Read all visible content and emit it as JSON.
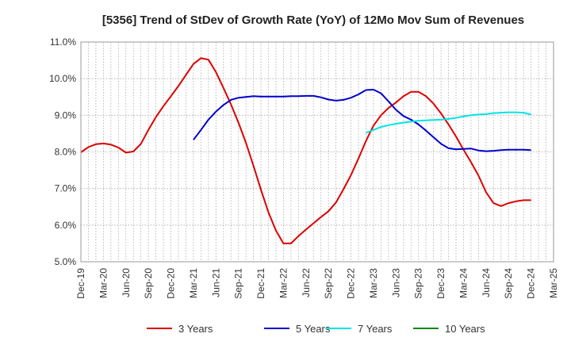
{
  "chart_data": {
    "type": "line",
    "title": "[5356]  Trend of StDev of Growth Rate (YoY) of 12Mo Mov Sum of Revenues",
    "xlabel": "",
    "ylabel": "",
    "ylim": [
      5.0,
      11.0
    ],
    "yticks": [
      "5.0%",
      "6.0%",
      "7.0%",
      "8.0%",
      "9.0%",
      "10.0%",
      "11.0%"
    ],
    "xticks": [
      "Dec-19",
      "Mar-20",
      "Jun-20",
      "Sep-20",
      "Dec-20",
      "Mar-21",
      "Jun-21",
      "Sep-21",
      "Dec-21",
      "Mar-22",
      "Jun-22",
      "Sep-22",
      "Dec-22",
      "Mar-23",
      "Jun-23",
      "Sep-23",
      "Dec-23",
      "Mar-24",
      "Jun-24",
      "Sep-24",
      "Dec-24",
      "Mar-25"
    ],
    "grid": true,
    "legend_position": "bottom",
    "series": [
      {
        "name": "3 Years",
        "color": "#dd0000",
        "values": [
          7.99,
          8.13,
          8.21,
          8.23,
          8.2,
          8.12,
          7.98,
          8.01,
          8.22,
          8.6,
          8.95,
          9.25,
          9.52,
          9.8,
          10.1,
          10.4,
          10.56,
          10.52,
          10.18,
          9.75,
          9.3,
          8.8,
          8.25,
          7.62,
          6.97,
          6.35,
          5.85,
          5.5,
          5.5,
          5.7,
          5.88,
          6.05,
          6.22,
          6.38,
          6.62,
          6.98,
          7.37,
          7.82,
          8.3,
          8.72,
          9.0,
          9.2,
          9.35,
          9.52,
          9.64,
          9.64,
          9.52,
          9.32,
          9.05,
          8.75,
          8.42,
          8.06,
          7.72,
          7.35,
          6.9,
          6.6,
          6.52,
          6.6,
          6.65,
          6.68,
          6.68
        ]
      },
      {
        "name": "5 Years",
        "color": "#0000cc",
        "values": [
          null,
          null,
          null,
          null,
          null,
          null,
          null,
          null,
          null,
          null,
          null,
          null,
          null,
          null,
          null,
          8.33,
          8.6,
          8.88,
          9.1,
          9.28,
          9.42,
          9.48,
          9.5,
          9.52,
          9.51,
          9.51,
          9.51,
          9.51,
          9.52,
          9.52,
          9.53,
          9.53,
          9.49,
          9.43,
          9.4,
          9.42,
          9.48,
          9.57,
          9.69,
          9.7,
          9.6,
          9.38,
          9.15,
          8.98,
          8.88,
          8.75,
          8.58,
          8.4,
          8.22,
          8.1,
          8.07,
          8.08,
          8.09,
          8.04,
          8.02,
          8.03,
          8.05,
          8.06,
          8.06,
          8.06,
          8.05
        ]
      },
      {
        "name": "7 Years",
        "color": "#00e5e5",
        "values": [
          null,
          null,
          null,
          null,
          null,
          null,
          null,
          null,
          null,
          null,
          null,
          null,
          null,
          null,
          null,
          null,
          null,
          null,
          null,
          null,
          null,
          null,
          null,
          null,
          null,
          null,
          null,
          null,
          null,
          null,
          null,
          null,
          null,
          null,
          null,
          null,
          null,
          null,
          8.52,
          8.6,
          8.68,
          8.73,
          8.77,
          8.8,
          8.83,
          8.85,
          8.86,
          8.87,
          8.88,
          8.9,
          8.93,
          8.97,
          9.0,
          9.02,
          9.03,
          9.06,
          9.07,
          9.08,
          9.08,
          9.07,
          9.02
        ]
      },
      {
        "name": "10 Years",
        "color": "#008800",
        "values": []
      }
    ]
  }
}
